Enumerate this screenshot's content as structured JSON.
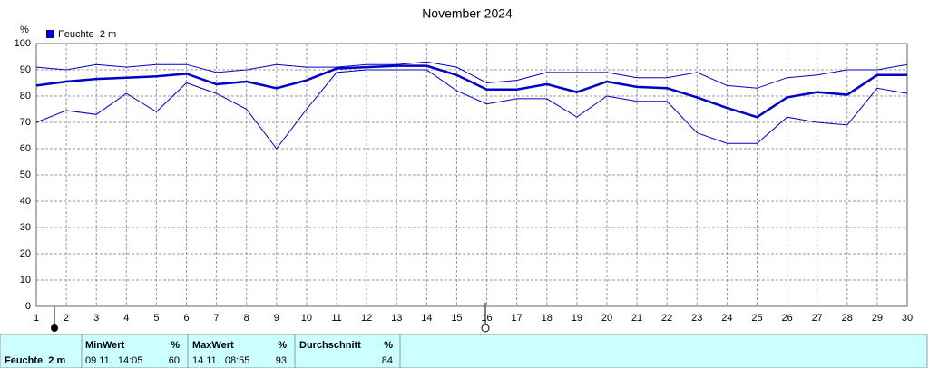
{
  "chart_data": {
    "type": "line",
    "title": "November 2024",
    "y_label": "%",
    "x": [
      1,
      2,
      3,
      4,
      5,
      6,
      7,
      8,
      9,
      10,
      11,
      12,
      13,
      14,
      15,
      16,
      17,
      18,
      19,
      20,
      21,
      22,
      23,
      24,
      25,
      26,
      27,
      28,
      29,
      30
    ],
    "xlim": [
      1,
      30
    ],
    "xticks": [
      1,
      2,
      3,
      4,
      5,
      6,
      7,
      8,
      9,
      10,
      11,
      12,
      13,
      14,
      15,
      16,
      17,
      18,
      19,
      20,
      21,
      22,
      23,
      24,
      25,
      26,
      27,
      28,
      29,
      30
    ],
    "ylim": [
      0,
      100
    ],
    "yticks": [
      0,
      10,
      20,
      30,
      40,
      50,
      60,
      70,
      80,
      90,
      100
    ],
    "grid": true,
    "series": [
      {
        "color": "#0000c8",
        "values": [
          91,
          90,
          92,
          91,
          92,
          92,
          89,
          90,
          92,
          91,
          91,
          92,
          92,
          93,
          91,
          85,
          86,
          89,
          89,
          89,
          87,
          87,
          89,
          84,
          83,
          87,
          88,
          90,
          90,
          92
        ]
      },
      {
        "name": "Feuchte  2 m",
        "color": "#0000c8",
        "values": [
          84,
          85.5,
          86.5,
          87,
          87.5,
          88.5,
          84.5,
          85.5,
          83,
          86,
          90.5,
          91,
          91.5,
          91.5,
          88,
          82.5,
          82.5,
          84.5,
          81.5,
          85.5,
          83.5,
          83,
          79.5,
          75.5,
          72,
          79.5,
          81.5,
          80.5,
          88,
          88
        ]
      },
      {
        "color": "#0000c8",
        "values": [
          70,
          74.5,
          73,
          81,
          74,
          85,
          81,
          75,
          60,
          75,
          89,
          90,
          90,
          90,
          82,
          77,
          79,
          79,
          72,
          80,
          78,
          78,
          66,
          62,
          62,
          72,
          70,
          69,
          83,
          81
        ]
      }
    ]
  },
  "table": {
    "label": "Feuchte  2 m",
    "header": [
      "MinWert",
      "%",
      "MaxWert",
      "%",
      "Durchschnitt",
      "%"
    ],
    "row": [
      "09.11.  14:05",
      "60",
      "14.11.  08:55",
      "93",
      "84"
    ]
  }
}
